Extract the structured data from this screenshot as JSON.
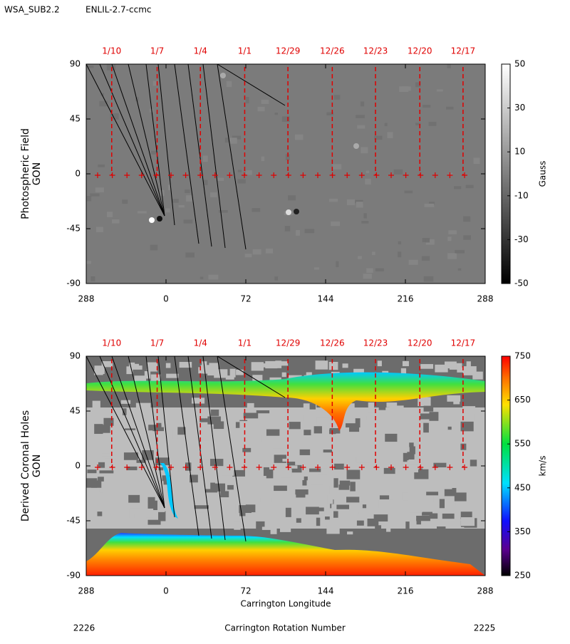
{
  "header": [
    "WSA_SUB2.2",
    "ENLIL-2.7-ccmc"
  ],
  "chart_data": [
    {
      "type": "map",
      "ylabel": [
        "Photospheric Field",
        "GON"
      ],
      "xlim": [
        288,
        648
      ],
      "xticks": [
        288,
        {
          "value": 360,
          "label": "0"
        },
        {
          "value": 432,
          "label": "72"
        },
        {
          "value": 504,
          "label": "144"
        },
        {
          "value": 576,
          "label": "216"
        },
        {
          "value": 648,
          "label": "288"
        }
      ],
      "ylim": [
        -90,
        90
      ],
      "yticks": [
        -90,
        -45,
        0,
        45,
        90
      ],
      "date_markers": [
        {
          "label": "1/10",
          "x": 311
        },
        {
          "label": "1/7",
          "x": 352
        },
        {
          "label": "1/4",
          "x": 391
        },
        {
          "label": "1/1",
          "x": 431
        },
        {
          "label": "12/29",
          "x": 470
        },
        {
          "label": "12/26",
          "x": 510
        },
        {
          "label": "12/23",
          "x": 549
        },
        {
          "label": "12/20",
          "x": 589
        },
        {
          "label": "12/17",
          "x": 628
        }
      ],
      "colorbar": {
        "label": "Gauss",
        "colormap": "gray",
        "lim": [
          -50,
          50
        ],
        "ticks": [
          -50,
          -30,
          -10,
          10,
          30,
          50
        ]
      }
    },
    {
      "type": "map",
      "ylabel": [
        "Derived Coronal Holes",
        "GON"
      ],
      "xlabel": "Carrington Longitude",
      "xlim": [
        288,
        648
      ],
      "xticks": [
        288,
        {
          "value": 360,
          "label": "0"
        },
        {
          "value": 432,
          "label": "72"
        },
        {
          "value": 504,
          "label": "144"
        },
        {
          "value": 576,
          "label": "216"
        },
        {
          "value": 648,
          "label": "288"
        }
      ],
      "ylim": [
        -90,
        90
      ],
      "yticks": [
        -90,
        -45,
        0,
        45,
        90
      ],
      "date_markers": [
        {
          "label": "1/10",
          "x": 311
        },
        {
          "label": "1/7",
          "x": 352
        },
        {
          "label": "1/4",
          "x": 391
        },
        {
          "label": "1/1",
          "x": 431
        },
        {
          "label": "12/29",
          "x": 470
        },
        {
          "label": "12/26",
          "x": 510
        },
        {
          "label": "12/23",
          "x": 549
        },
        {
          "label": "12/20",
          "x": 589
        },
        {
          "label": "12/17",
          "x": 628
        }
      ],
      "colorbar": {
        "label": "km/s",
        "colormap": "jet",
        "lim": [
          250,
          750
        ],
        "ticks": [
          250,
          350,
          450,
          550,
          650,
          750
        ]
      }
    }
  ],
  "footer": {
    "left": "2226",
    "title": "Carrington Rotation Number",
    "right": "2225"
  }
}
